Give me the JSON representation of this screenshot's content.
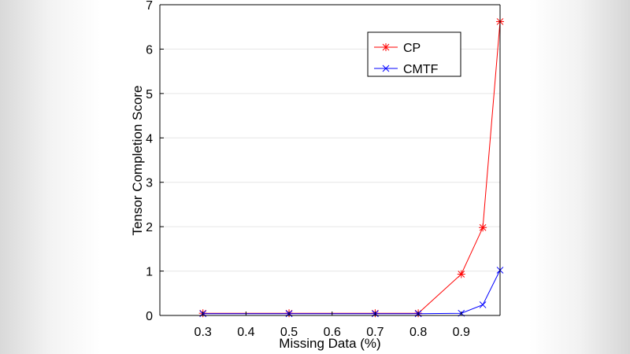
{
  "chart_data": {
    "type": "line",
    "title": "",
    "xlabel": "Missing Data (%)",
    "ylabel": "Tensor Completion Score",
    "xlim": [
      0.2,
      0.99
    ],
    "ylim": [
      0,
      7
    ],
    "xticks": [
      "0.3",
      "0.4",
      "0.5",
      "0.6",
      "0.7",
      "0.8",
      "0.9"
    ],
    "yticks": [
      "0",
      "1",
      "2",
      "3",
      "4",
      "5",
      "6",
      "7"
    ],
    "x": [
      0.3,
      0.5,
      0.7,
      0.8,
      0.9,
      0.95,
      0.99
    ],
    "grid": "horizontal",
    "legend_position": "top-right",
    "series": [
      {
        "name": "CP",
        "color": "#ff0000",
        "marker": "asterisk",
        "values": [
          0.05,
          0.05,
          0.05,
          0.05,
          0.93,
          1.98,
          6.62
        ]
      },
      {
        "name": "CMTF",
        "color": "#0000ff",
        "marker": "x",
        "values": [
          0.04,
          0.04,
          0.04,
          0.04,
          0.05,
          0.24,
          1.02
        ]
      }
    ]
  }
}
